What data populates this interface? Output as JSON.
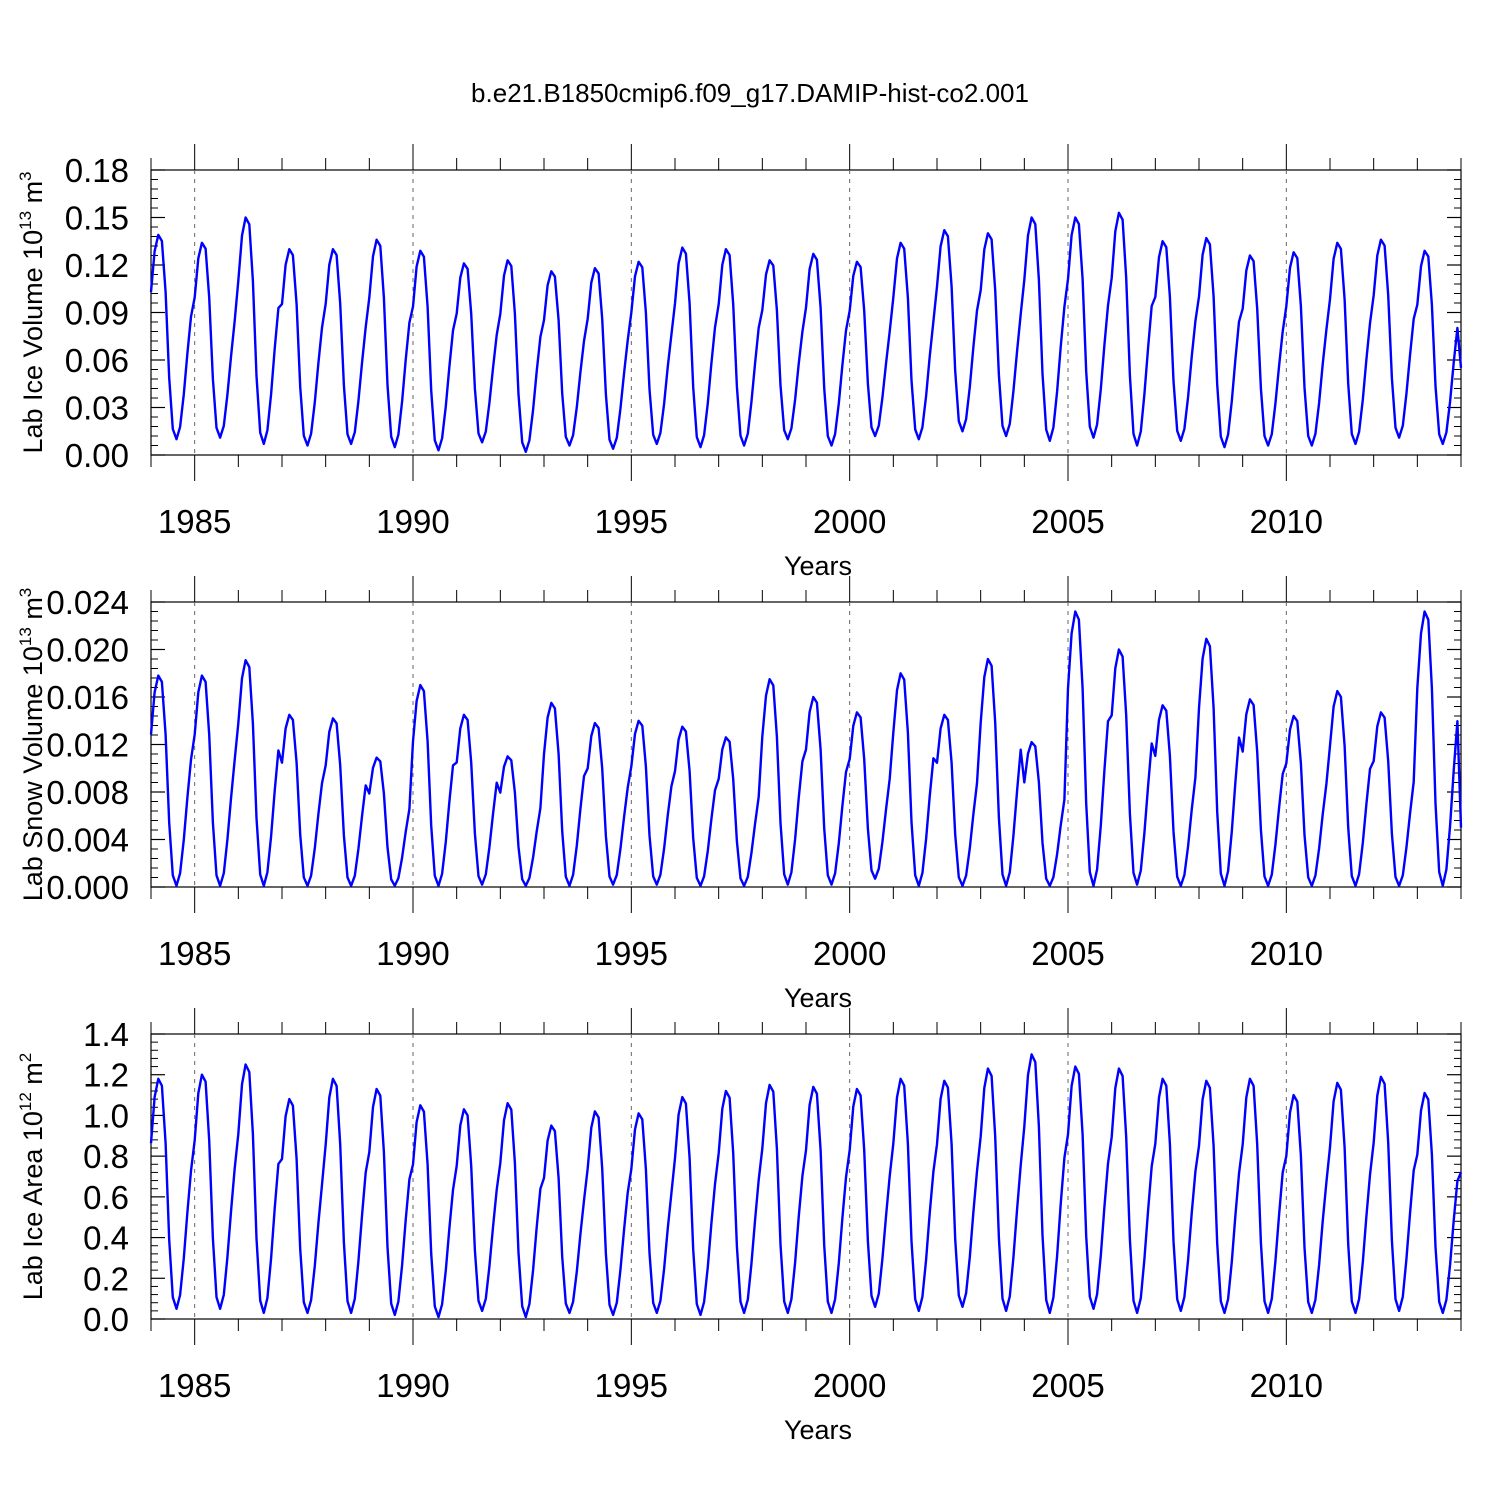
{
  "title": "b.e21.B1850cmip6.f09_g17.DAMIP-hist-co2.001",
  "chart_data": [
    {
      "type": "line",
      "ylabel_text": "Lab Ice Volume 10",
      "ylabel_exp": "13",
      "ylabel_unit": " m",
      "ylabel_unit_exp": "3",
      "xlabel": "Years",
      "xlim": [
        1984.0,
        2014.0
      ],
      "ylim": [
        0.0,
        0.18
      ],
      "yticks": [
        0.0,
        0.03,
        0.06,
        0.09,
        0.12,
        0.15,
        0.18
      ],
      "ytick_labels": [
        "0.00",
        "0.03",
        "0.06",
        "0.09",
        "0.12",
        "0.15",
        "0.18"
      ],
      "xticks": [
        1985,
        1990,
        1995,
        2000,
        2005,
        2010
      ],
      "xtick_labels": [
        "1985",
        "1990",
        "1995",
        "2000",
        "2005",
        "2010"
      ],
      "color": "#0000ff",
      "start_year": 1984,
      "annual_peaks": [
        0.139,
        0.134,
        0.15,
        0.13,
        0.13,
        0.136,
        0.129,
        0.121,
        0.123,
        0.116,
        0.118,
        0.122,
        0.131,
        0.13,
        0.123,
        0.127,
        0.122,
        0.134,
        0.142,
        0.14,
        0.15,
        0.15,
        0.153,
        0.135,
        0.137,
        0.126,
        0.128,
        0.134,
        0.136,
        0.129
      ],
      "annual_troughs": [
        0.01,
        0.011,
        0.007,
        0.006,
        0.007,
        0.005,
        0.003,
        0.008,
        0.002,
        0.006,
        0.004,
        0.007,
        0.005,
        0.006,
        0.01,
        0.006,
        0.012,
        0.01,
        0.015,
        0.012,
        0.009,
        0.011,
        0.006,
        0.009,
        0.005,
        0.006,
        0.006,
        0.007,
        0.011,
        0.007
      ],
      "end_value": 0.055
    },
    {
      "type": "line",
      "ylabel_text": "Lab Snow Volume 10",
      "ylabel_exp": "13",
      "ylabel_unit": " m",
      "ylabel_unit_exp": "3",
      "xlabel": "Years",
      "xlim": [
        1984.0,
        2014.0
      ],
      "ylim": [
        0.0,
        0.024
      ],
      "yticks": [
        0.0,
        0.004,
        0.008,
        0.012,
        0.016,
        0.02,
        0.024
      ],
      "ytick_labels": [
        "0.000",
        "0.004",
        "0.008",
        "0.012",
        "0.016",
        "0.020",
        "0.024"
      ],
      "xticks": [
        1985,
        1990,
        1995,
        2000,
        2005,
        2010
      ],
      "xtick_labels": [
        "1985",
        "1990",
        "1995",
        "2000",
        "2005",
        "2010"
      ],
      "color": "#0000ff",
      "start_year": 1984,
      "annual_peaks": [
        0.0178,
        0.0178,
        0.0191,
        0.0145,
        0.0142,
        0.0109,
        0.017,
        0.0145,
        0.011,
        0.0155,
        0.0138,
        0.014,
        0.0135,
        0.0126,
        0.0175,
        0.016,
        0.0147,
        0.018,
        0.0145,
        0.0192,
        0.0122,
        0.0232,
        0.02,
        0.0153,
        0.0209,
        0.0158,
        0.0144,
        0.0165,
        0.0147,
        0.0232
      ],
      "annual_troughs": [
        0.0001,
        0.0001,
        0.0001,
        0.0001,
        0.0001,
        0.0001,
        0.0001,
        0.0002,
        0.0001,
        0.0001,
        0.0002,
        0.0002,
        0.0001,
        0.0001,
        0.0002,
        0.0002,
        0.0007,
        0.0001,
        0.0001,
        0.0001,
        0.0001,
        0.0001,
        0.0002,
        0.0001,
        0.0001,
        0.0001,
        0.0001,
        0.0001,
        0.0001,
        0.0001
      ],
      "end_value": 0.005
    },
    {
      "type": "line",
      "ylabel_text": "Lab Ice Area 10",
      "ylabel_exp": "12",
      "ylabel_unit": " m",
      "ylabel_unit_exp": "2",
      "xlabel": "Years",
      "xlim": [
        1984.0,
        2014.0
      ],
      "ylim": [
        0.0,
        1.4
      ],
      "yticks": [
        0.0,
        0.2,
        0.4,
        0.6,
        0.8,
        1.0,
        1.2,
        1.4
      ],
      "ytick_labels": [
        "0.0",
        "0.2",
        "0.4",
        "0.6",
        "0.8",
        "1.0",
        "1.2",
        "1.4"
      ],
      "xticks": [
        1985,
        1990,
        1995,
        2000,
        2005,
        2010
      ],
      "xtick_labels": [
        "1985",
        "1990",
        "1995",
        "2000",
        "2005",
        "2010"
      ],
      "color": "#0000ff",
      "start_year": 1984,
      "annual_peaks": [
        1.18,
        1.2,
        1.25,
        1.08,
        1.18,
        1.13,
        1.05,
        1.03,
        1.06,
        0.95,
        1.02,
        1.01,
        1.09,
        1.12,
        1.15,
        1.14,
        1.13,
        1.18,
        1.17,
        1.23,
        1.3,
        1.24,
        1.23,
        1.18,
        1.17,
        1.18,
        1.1,
        1.16,
        1.19,
        1.11
      ],
      "annual_troughs": [
        0.05,
        0.05,
        0.03,
        0.03,
        0.03,
        0.02,
        0.01,
        0.04,
        0.01,
        0.03,
        0.02,
        0.03,
        0.02,
        0.03,
        0.03,
        0.03,
        0.06,
        0.04,
        0.06,
        0.04,
        0.03,
        0.05,
        0.03,
        0.04,
        0.03,
        0.03,
        0.03,
        0.03,
        0.04,
        0.03
      ],
      "end_value": 0.72
    }
  ]
}
